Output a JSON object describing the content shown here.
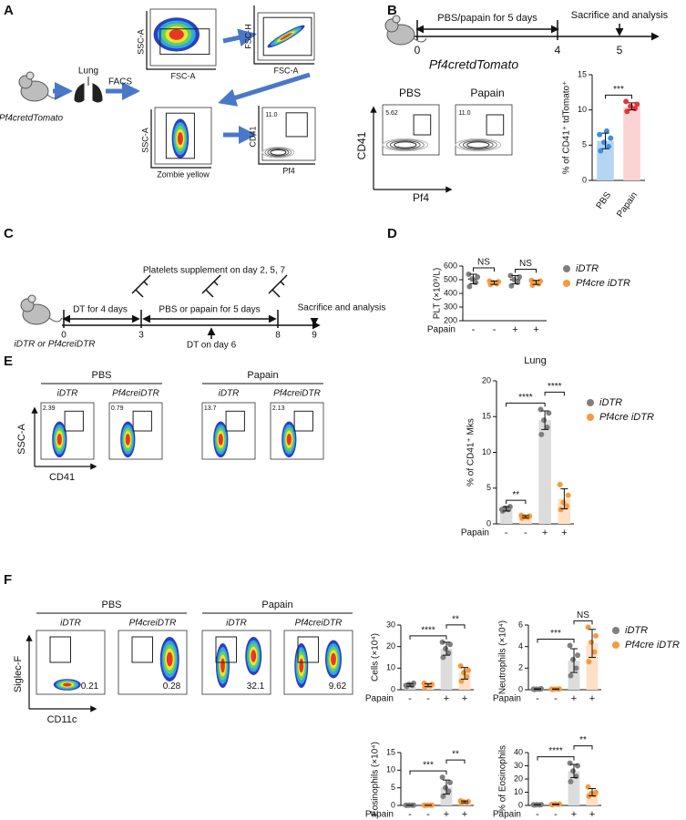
{
  "panel_labels": [
    "A",
    "B",
    "C",
    "D",
    "E",
    "F"
  ],
  "A": {
    "organ": "Lung",
    "method": "FACS",
    "mouse": "Pf4cretdTomato",
    "plots": [
      {
        "x": "FSC-A",
        "y": "SSC-A"
      },
      {
        "x": "FSC-A",
        "y": "FSC-H"
      },
      {
        "x": "Zombie yellow",
        "y": "SSC-A"
      },
      {
        "x": "Pf4",
        "y": "CD41",
        "gate": "11.0"
      }
    ]
  },
  "B": {
    "timeline": {
      "step1": "PBS/papain for 5 days",
      "step2": "Sacrifice and analysis",
      "ticks": [
        "0",
        "4",
        "5"
      ]
    },
    "mouse": "Pf4cretdTomato",
    "groups": [
      "PBS",
      "Papain"
    ],
    "gates": [
      "5.62",
      "11.0"
    ],
    "x_axis": "Pf4",
    "y_axis": "CD41"
  },
  "C": {
    "supplement": "Platelets supplement on day 2, 5, 7",
    "dt": "DT for 4 days",
    "treatment": "PBS or papain for 5 days",
    "dt2": "DT on day 6",
    "end": "Sacrifice and analysis",
    "ticks": [
      "0",
      "3",
      "8",
      "9"
    ],
    "mice": "iDTR or Pf4creiDTR"
  },
  "E": {
    "groups": [
      "PBS",
      "Papain"
    ],
    "genotypes": [
      "iDTR",
      "Pf4creiDTR",
      "iDTR",
      "Pf4creiDTR"
    ],
    "gates": [
      "2.39",
      "0.79",
      "13.7",
      "2.13"
    ],
    "x_axis": "CD41",
    "y_axis": "SSC-A"
  },
  "F": {
    "groups": [
      "PBS",
      "Papain"
    ],
    "genotypes": [
      "iDTR",
      "Pf4creiDTR",
      "iDTR",
      "Pf4creiDTR"
    ],
    "gates": [
      "0.21",
      "0.28",
      "32.1",
      "9.62"
    ],
    "x_axis": "CD11c",
    "y_axis": "Siglec-F"
  },
  "chart_data": [
    {
      "type": "bar",
      "ylabel": "% of CD41⁺ tdTomato⁺",
      "categories": [
        "PBS",
        "Papain"
      ],
      "ylim": [
        0,
        15
      ],
      "yticks": [
        0,
        5,
        10,
        15
      ],
      "values": [
        5.6,
        10.5
      ],
      "errors": [
        1.1,
        0.5
      ],
      "points": [
        [
          4.2,
          4.8,
          5.4,
          6,
          6.5,
          7
        ],
        [
          9.8,
          10.2,
          10.5,
          10.8,
          11.2
        ]
      ],
      "bar_colors": [
        "#b5d5f3",
        "#fbd3d3"
      ],
      "dot_colors": [
        "#3d8fe0",
        "#e8343a"
      ],
      "significance": [
        {
          "pair": [
            0,
            1
          ],
          "label": "***"
        }
      ]
    },
    {
      "type": "strip",
      "ylabel": "PLT (×10⁹/L)",
      "categories": [
        "-",
        "-",
        "+",
        "+"
      ],
      "row_label": "Papain",
      "ylim": [
        200,
        600
      ],
      "yticks": [
        200,
        300,
        400,
        500,
        600
      ],
      "values": [
        505,
        478,
        500,
        480
      ],
      "errors": [
        35,
        12,
        30,
        15
      ],
      "points": [
        [
          450,
          480,
          505,
          520,
          540
        ],
        [
          465,
          470,
          480,
          485,
          490
        ],
        [
          455,
          480,
          500,
          520,
          530
        ],
        [
          460,
          470,
          480,
          490,
          495
        ]
      ],
      "dot_colors": [
        "#7f7f7f",
        "#f79a3e",
        "#7f7f7f",
        "#f79a3e"
      ],
      "significance": [
        {
          "pair": [
            0,
            1
          ],
          "label": "NS"
        },
        {
          "pair": [
            2,
            3
          ],
          "label": "NS"
        }
      ],
      "legend": [
        {
          "name": "iDTR",
          "color": "#7f7f7f"
        },
        {
          "name": "Pf4cre iDTR",
          "color": "#f79a3e"
        }
      ]
    },
    {
      "type": "bar",
      "title": "Lung",
      "ylabel": "% of CD41⁺ Mks",
      "categories": [
        "-",
        "-",
        "+",
        "+"
      ],
      "row_label": "Papain",
      "ylim": [
        0,
        20
      ],
      "yticks": [
        0,
        5,
        10,
        15,
        20
      ],
      "values": [
        2.1,
        1.0,
        14.5,
        3.5
      ],
      "errors": [
        0.3,
        0.15,
        1.3,
        1.4
      ],
      "points": [
        [
          1.8,
          2,
          2.2,
          2.4,
          2
        ],
        [
          0.8,
          0.9,
          1,
          1.1,
          1.2
        ],
        [
          12.5,
          13.5,
          14.5,
          15.5,
          16
        ],
        [
          2,
          2.5,
          3,
          4,
          5.5
        ]
      ],
      "bar_colors": [
        "#dcdcdc",
        "#fde0c5",
        "#dcdcdc",
        "#fde0c5"
      ],
      "dot_colors": [
        "#7f7f7f",
        "#f79a3e",
        "#7f7f7f",
        "#f79a3e"
      ],
      "significance": [
        {
          "pair": [
            0,
            1
          ],
          "label": "**"
        },
        {
          "pair": [
            0,
            2
          ],
          "label": "****"
        },
        {
          "pair": [
            2,
            3
          ],
          "label": "****"
        }
      ],
      "legend": [
        {
          "name": "iDTR",
          "color": "#7f7f7f"
        },
        {
          "name": "Pf4cre iDTR",
          "color": "#f79a3e"
        }
      ]
    },
    {
      "type": "bar",
      "ylabel": "Cells (×10⁴)",
      "categories": [
        "-",
        "-",
        "+",
        "+"
      ],
      "row_label": "Papain",
      "ylim": [
        0,
        30
      ],
      "yticks": [
        0,
        10,
        20,
        30
      ],
      "values": [
        2.2,
        2.1,
        19,
        7.6
      ],
      "errors": [
        0.6,
        0.7,
        3,
        2.7
      ],
      "points": [
        [
          1.5,
          2,
          2.5,
          3,
          2
        ],
        [
          1.2,
          1.8,
          2,
          2.5,
          3
        ],
        [
          15,
          17,
          19,
          21,
          22
        ],
        [
          4,
          6,
          8,
          9,
          11
        ]
      ],
      "bar_colors": [
        "#dcdcdc",
        "#fde0c5",
        "#dcdcdc",
        "#fde0c5"
      ],
      "dot_colors": [
        "#7f7f7f",
        "#f79a3e",
        "#7f7f7f",
        "#f79a3e"
      ],
      "significance": [
        {
          "pair": [
            0,
            2
          ],
          "label": "****"
        },
        {
          "pair": [
            2,
            3
          ],
          "label": "**"
        }
      ]
    },
    {
      "type": "bar",
      "ylabel": "Neutrophils (×10⁴)",
      "categories": [
        "-",
        "-",
        "+",
        "+"
      ],
      "row_label": "Papain",
      "ylim": [
        0,
        6
      ],
      "yticks": [
        0,
        2,
        4,
        6
      ],
      "values": [
        0.05,
        0.05,
        2.7,
        4.3
      ],
      "errors": [
        0.03,
        0.02,
        1.1,
        1.3
      ],
      "points": [
        [
          0.02,
          0.05,
          0.05,
          0.08,
          0.05
        ],
        [
          0.03,
          0.05,
          0.05,
          0.07,
          0.05
        ],
        [
          1.3,
          2,
          2.8,
          3.2,
          4.1
        ],
        [
          2.6,
          3.5,
          4.4,
          5,
          5.8
        ]
      ],
      "bar_colors": [
        "#dcdcdc",
        "#fde0c5",
        "#dcdcdc",
        "#fde0c5"
      ],
      "dot_colors": [
        "#7f7f7f",
        "#f79a3e",
        "#7f7f7f",
        "#f79a3e"
      ],
      "significance": [
        {
          "pair": [
            0,
            2
          ],
          "label": "***"
        },
        {
          "pair": [
            2,
            3
          ],
          "label": "NS"
        }
      ],
      "legend": [
        {
          "name": "iDTR",
          "color": "#7f7f7f"
        },
        {
          "name": "Pf4cre iDTR",
          "color": "#f79a3e"
        }
      ]
    },
    {
      "type": "bar",
      "ylabel": "Eosinophils (×10⁴)",
      "categories": [
        "-",
        "-",
        "+",
        "+"
      ],
      "row_label": "Papain",
      "ylim": [
        0,
        15
      ],
      "yticks": [
        0,
        5,
        10,
        15
      ],
      "values": [
        0.05,
        0.05,
        5.2,
        1.0
      ],
      "errors": [
        0.02,
        0.01,
        2,
        0.25
      ],
      "points": [
        [
          0.03,
          0.05,
          0.05,
          0.07,
          0.05
        ],
        [
          0.04,
          0.05,
          0.05,
          0.06,
          0.05
        ],
        [
          2.6,
          4,
          5,
          6.5,
          8
        ],
        [
          0.7,
          0.8,
          1,
          1.1,
          1.3
        ]
      ],
      "bar_colors": [
        "#dcdcdc",
        "#fde0c5",
        "#dcdcdc",
        "#fde0c5"
      ],
      "dot_colors": [
        "#7f7f7f",
        "#f79a3e",
        "#7f7f7f",
        "#f79a3e"
      ],
      "significance": [
        {
          "pair": [
            0,
            2
          ],
          "label": "***"
        },
        {
          "pair": [
            2,
            3
          ],
          "label": "**"
        }
      ]
    },
    {
      "type": "bar",
      "ylabel": "% of Eosinophils",
      "categories": [
        "-",
        "-",
        "+",
        "+"
      ],
      "row_label": "Papain",
      "ylim": [
        0,
        40
      ],
      "yticks": [
        0,
        10,
        20,
        30,
        40
      ],
      "values": [
        0.5,
        0.8,
        26,
        10
      ],
      "errors": [
        0.1,
        0.2,
        5,
        2.8
      ],
      "points": [
        [
          0.3,
          0.4,
          0.5,
          0.6,
          0.5
        ],
        [
          0.5,
          0.8,
          1,
          1,
          0.7
        ],
        [
          18,
          22,
          26,
          30,
          32
        ],
        [
          7,
          8,
          9,
          10,
          14
        ]
      ],
      "bar_colors": [
        "#dcdcdc",
        "#fde0c5",
        "#dcdcdc",
        "#fde0c5"
      ],
      "dot_colors": [
        "#7f7f7f",
        "#f79a3e",
        "#7f7f7f",
        "#f79a3e"
      ],
      "significance": [
        {
          "pair": [
            0,
            2
          ],
          "label": "****"
        },
        {
          "pair": [
            2,
            3
          ],
          "label": "**"
        }
      ]
    }
  ]
}
